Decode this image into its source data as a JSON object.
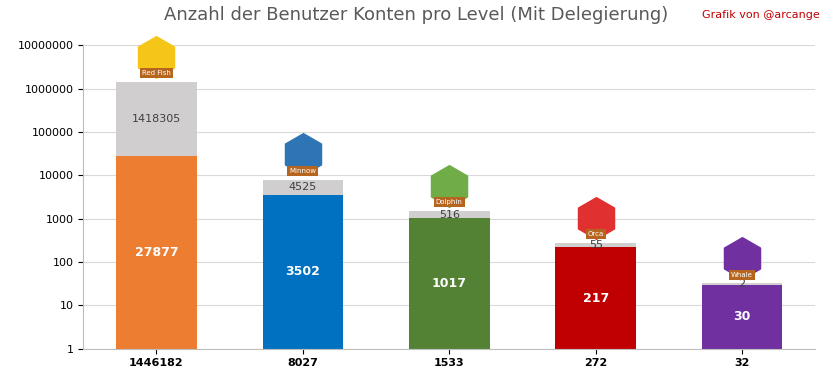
{
  "chart_data": {
    "type": "bar",
    "title": "Anzahl der Benutzer Konten pro Level (Mit Delegierung)",
    "annotations": [
      "Grafik von @arcange"
    ],
    "level_names": [
      "Red Fish",
      "Minnow",
      "Dolphin",
      "Orca",
      "Whale"
    ],
    "categories": [
      "1446182",
      "8027",
      "1533",
      "272",
      "32"
    ],
    "series": [
      {
        "colors": [
          "#ed7d31",
          "#0070c0",
          "#548235",
          "#c00000",
          "#7030a0"
        ],
        "values": [
          27877,
          3502,
          1017,
          217,
          30
        ]
      },
      {
        "color": "#d0cece",
        "values": [
          1418305,
          4525,
          516,
          55,
          2
        ]
      }
    ],
    "stacked": true,
    "log": "y",
    "grid": true,
    "data_labels": true,
    "ylim": [
      1,
      10000000
    ],
    "yticks": [
      1,
      10,
      100,
      1000,
      10000,
      100000,
      1000000,
      10000000
    ]
  }
}
